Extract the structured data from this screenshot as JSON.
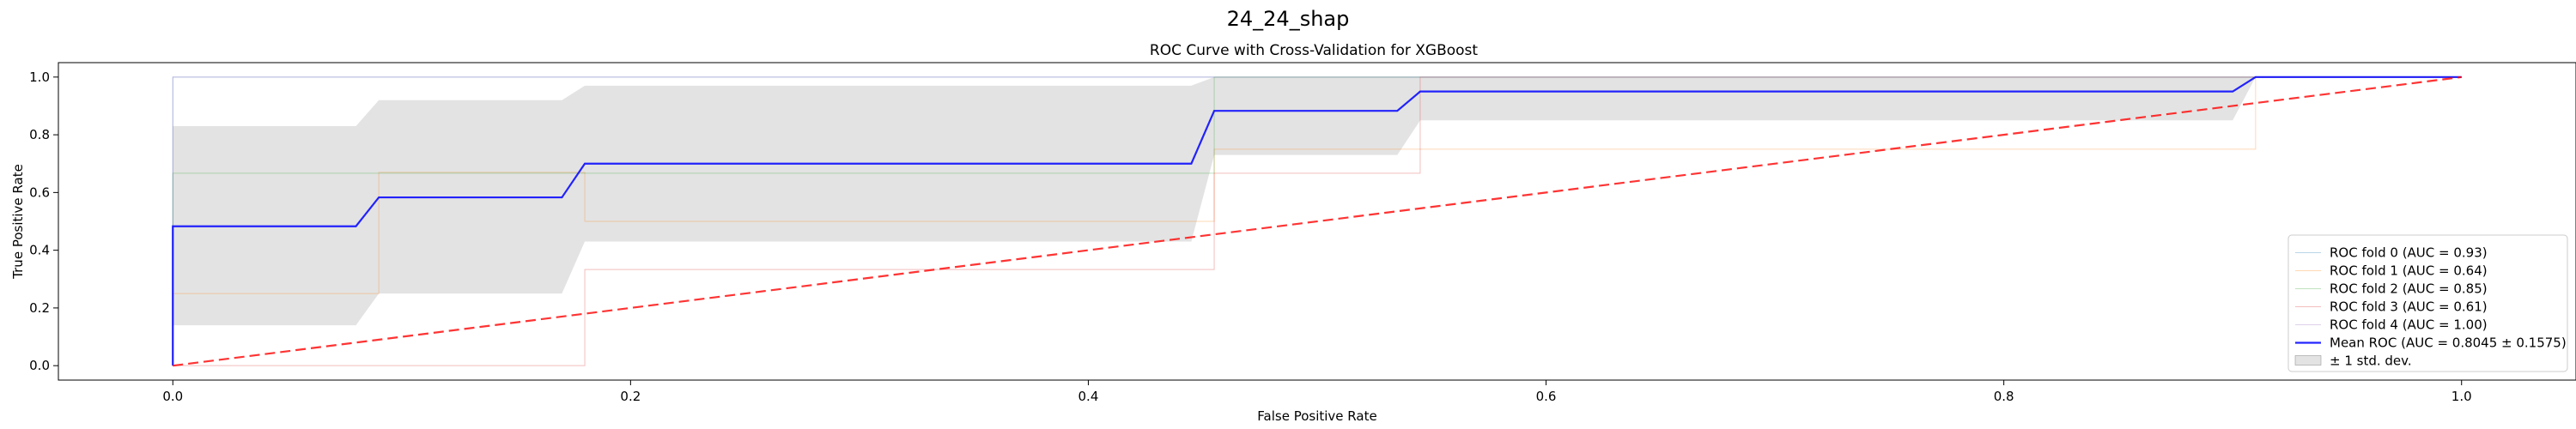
{
  "figure": {
    "suptitle": "24_24_shap"
  },
  "chart_data": {
    "type": "line",
    "title": "ROC Curve with Cross-Validation for XGBoost",
    "xlabel": "False Positive Rate",
    "ylabel": "True Positive Rate",
    "xlim": [
      -0.05,
      1.05
    ],
    "ylim": [
      -0.05,
      1.05
    ],
    "xticks": [
      0.0,
      0.2,
      0.4,
      0.6,
      0.8,
      1.0
    ],
    "yticks": [
      0.0,
      0.2,
      0.4,
      0.6,
      0.8,
      1.0
    ],
    "tick_labels_x": [
      "0.0",
      "0.2",
      "0.4",
      "0.6",
      "0.8",
      "1.0"
    ],
    "tick_labels_y": [
      "0.0",
      "0.2",
      "0.4",
      "0.6",
      "0.8",
      "1.0"
    ],
    "grid": false,
    "legend_position": "lower right",
    "series": [
      {
        "name": "ROC fold 0 (AUC = 0.93)",
        "color": "#1f77b4",
        "opacity": 0.3,
        "width": 1,
        "dash": "",
        "x": [
          0,
          0,
          0.09,
          0.09,
          0.18,
          0.18,
          1
        ],
        "y": [
          0,
          1,
          1,
          1,
          1,
          1,
          1
        ]
      },
      {
        "name": "ROC fold 1 (AUC = 0.64)",
        "color": "#ff7f0e",
        "opacity": 0.3,
        "width": 1,
        "dash": "",
        "x": [
          0,
          0,
          0.09,
          0.09,
          0.18,
          0.18,
          0.455,
          0.455,
          0.91,
          0.91,
          1
        ],
        "y": [
          0,
          0.25,
          0.25,
          0.67,
          0.67,
          0.5,
          0.5,
          0.75,
          0.75,
          1,
          1
        ]
      },
      {
        "name": "ROC fold 2 (AUC = 0.85)",
        "color": "#2ca02c",
        "opacity": 0.3,
        "width": 1,
        "dash": "",
        "x": [
          0,
          0,
          0.09,
          0.09,
          0.18,
          0.18,
          0.455,
          0.455,
          1
        ],
        "y": [
          0,
          0.667,
          0.667,
          0.667,
          0.667,
          0.667,
          0.667,
          1,
          1
        ]
      },
      {
        "name": "ROC fold 3 (AUC = 0.61)",
        "color": "#d62728",
        "opacity": 0.3,
        "width": 1,
        "dash": "",
        "x": [
          0,
          0,
          0.18,
          0.18,
          0.455,
          0.455,
          0.545,
          0.545,
          1
        ],
        "y": [
          0,
          0,
          0,
          0.333,
          0.333,
          0.667,
          0.667,
          1,
          1
        ]
      },
      {
        "name": "ROC fold 4 (AUC = 1.00)",
        "color": "#9467bd",
        "opacity": 0.3,
        "width": 1,
        "dash": "",
        "x": [
          0,
          0,
          1
        ],
        "y": [
          0,
          1,
          1
        ]
      },
      {
        "name": "Mean ROC (AUC = 0.8045 ± 0.1575)",
        "color": "#0000ff",
        "opacity": 0.85,
        "width": 2.2,
        "dash": "",
        "x": [
          0,
          0,
          0.08,
          0.09,
          0.17,
          0.18,
          0.445,
          0.455,
          0.535,
          0.545,
          0.9,
          0.91,
          1
        ],
        "y": [
          0,
          0.483,
          0.483,
          0.583,
          0.583,
          0.7,
          0.7,
          0.883,
          0.883,
          0.95,
          0.95,
          1,
          1
        ]
      },
      {
        "name": "",
        "color": "#ff0000",
        "opacity": 0.8,
        "width": 2.2,
        "dash": "12,6",
        "x": [
          0,
          1
        ],
        "y": [
          0,
          1
        ]
      }
    ],
    "band": {
      "name": "± 1 std. dev.",
      "color": "#808080",
      "opacity": 0.22,
      "x": [
        0,
        0.08,
        0.09,
        0.17,
        0.18,
        0.445,
        0.455,
        0.535,
        0.545,
        0.9,
        0.91,
        1
      ],
      "upper": [
        0.83,
        0.83,
        0.92,
        0.92,
        0.97,
        0.97,
        1,
        1,
        1,
        1,
        1,
        1
      ],
      "lower": [
        0.14,
        0.14,
        0.25,
        0.25,
        0.43,
        0.43,
        0.73,
        0.73,
        0.85,
        0.85,
        1,
        1
      ]
    }
  }
}
